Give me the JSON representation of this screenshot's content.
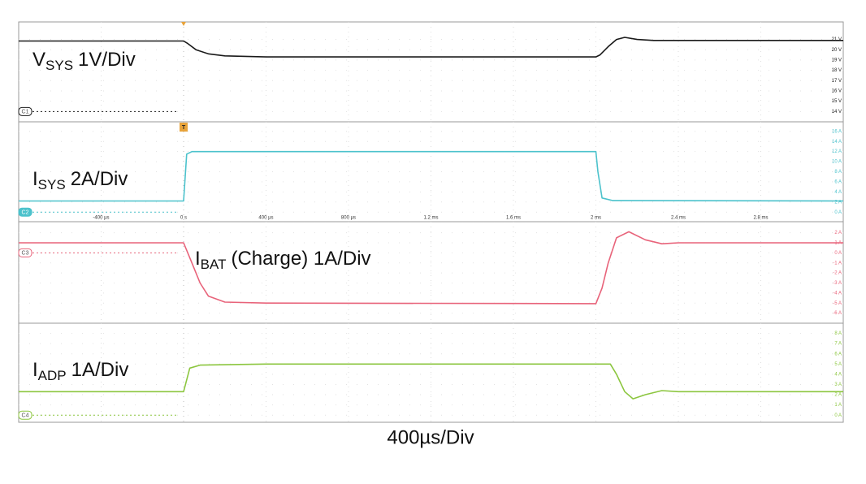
{
  "chart_data": [
    {
      "type": "line",
      "channel": "C1",
      "color": "#1a1a1a",
      "label": {
        "name": "V",
        "subscript": "SYS",
        "scale": "1V/Div"
      },
      "xlim": [
        -800,
        3200
      ],
      "ylim": [
        13,
        22.7
      ],
      "yticks": [
        {
          "value": 21,
          "label": "21 V"
        },
        {
          "value": 20,
          "label": "20 V"
        },
        {
          "value": 19,
          "label": "19 V"
        },
        {
          "value": 18,
          "label": "18 V"
        },
        {
          "value": 17,
          "label": "17 V"
        },
        {
          "value": 16,
          "label": "16 V"
        },
        {
          "value": 15,
          "label": "15 V"
        },
        {
          "value": 14,
          "label": "14 V"
        }
      ],
      "x": [
        -800,
        0,
        20,
        60,
        120,
        200,
        400,
        1000,
        1600,
        2000,
        2020,
        2060,
        2100,
        2140,
        2200,
        2280,
        3200
      ],
      "values": [
        20.85,
        20.85,
        20.6,
        20.0,
        19.6,
        19.4,
        19.3,
        19.3,
        19.3,
        19.3,
        19.5,
        20.3,
        21.0,
        21.2,
        21.0,
        20.9,
        20.9
      ]
    },
    {
      "type": "line",
      "channel": "C2",
      "color": "#4cc2cc",
      "label": {
        "name": "I",
        "subscript": "SYS",
        "scale": "2A/Div"
      },
      "xlim": [
        -800,
        3200
      ],
      "ylim": [
        -1.9,
        17.9
      ],
      "xticks": [
        {
          "value": -400,
          "label": "-400 µs"
        },
        {
          "value": 0,
          "label": "0 s"
        },
        {
          "value": 400,
          "label": "400 µs"
        },
        {
          "value": 800,
          "label": "800 µs"
        },
        {
          "value": 1200,
          "label": "1.2 ms"
        },
        {
          "value": 1600,
          "label": "1.6 ms"
        },
        {
          "value": 2000,
          "label": "2 ms"
        },
        {
          "value": 2400,
          "label": "2.4 ms"
        },
        {
          "value": 2800,
          "label": "2.8 ms"
        }
      ],
      "yticks": [
        {
          "value": 16,
          "label": "16 A"
        },
        {
          "value": 14,
          "label": "14 A"
        },
        {
          "value": 12,
          "label": "12 A"
        },
        {
          "value": 10,
          "label": "10 A"
        },
        {
          "value": 8,
          "label": "8 A"
        },
        {
          "value": 6,
          "label": "6 A"
        },
        {
          "value": 4,
          "label": "4 A"
        },
        {
          "value": 2,
          "label": "2 A"
        },
        {
          "value": 0,
          "label": "0 A"
        }
      ],
      "x": [
        -800,
        0,
        15,
        40,
        2000,
        2010,
        2030,
        2080,
        3200
      ],
      "values": [
        2.2,
        2.2,
        11.5,
        12,
        12,
        8,
        2.8,
        2.3,
        2.2
      ]
    },
    {
      "type": "line",
      "channel": "C3",
      "color": "#e8637a",
      "label": {
        "name": "I",
        "subscript": "BAT",
        "scale": "(Charge) 1A/Div"
      },
      "xlim": [
        -800,
        3200
      ],
      "ylim": [
        -7.0,
        3.1
      ],
      "yticks": [
        {
          "value": 2,
          "label": "2 A"
        },
        {
          "value": 1,
          "label": "1 A"
        },
        {
          "value": 0,
          "label": "0 A"
        },
        {
          "value": -1,
          "label": "-1 A"
        },
        {
          "value": -2,
          "label": "-2 A"
        },
        {
          "value": -3,
          "label": "-3 A"
        },
        {
          "value": -4,
          "label": "-4 A"
        },
        {
          "value": -5,
          "label": "-5 A"
        },
        {
          "value": -6,
          "label": "-6 A"
        }
      ],
      "x": [
        -800,
        0,
        40,
        80,
        120,
        200,
        400,
        2000,
        2030,
        2060,
        2100,
        2160,
        2240,
        2320,
        2400,
        3200
      ],
      "values": [
        1,
        1,
        -1,
        -3,
        -4.3,
        -4.9,
        -5.0,
        -5.05,
        -3.5,
        -1,
        1.5,
        2.1,
        1.3,
        0.9,
        1.0,
        1.0
      ]
    },
    {
      "type": "line",
      "channel": "C4",
      "color": "#8cc63f",
      "label": {
        "name": "I",
        "subscript": "ADP",
        "scale": "1A/Div"
      },
      "xlim": [
        -800,
        3200
      ],
      "ylim": [
        -0.7,
        9.0
      ],
      "yticks": [
        {
          "value": 8,
          "label": "8 A"
        },
        {
          "value": 7,
          "label": "7 A"
        },
        {
          "value": 6,
          "label": "6 A"
        },
        {
          "value": 5,
          "label": "5 A"
        },
        {
          "value": 4,
          "label": "4 A"
        },
        {
          "value": 3,
          "label": "3 A"
        },
        {
          "value": 2,
          "label": "2 A"
        },
        {
          "value": 1,
          "label": "1 A"
        },
        {
          "value": 0,
          "label": "0 A"
        }
      ],
      "x": [
        -800,
        0,
        30,
        80,
        400,
        2000,
        2070,
        2100,
        2140,
        2180,
        2240,
        2320,
        2400,
        3200
      ],
      "values": [
        2.3,
        2.3,
        4.6,
        4.9,
        5.0,
        5.0,
        5.0,
        4.0,
        2.3,
        1.6,
        2.0,
        2.4,
        2.3,
        2.3
      ]
    }
  ],
  "trigger": "T",
  "footer": "400µs/Div"
}
